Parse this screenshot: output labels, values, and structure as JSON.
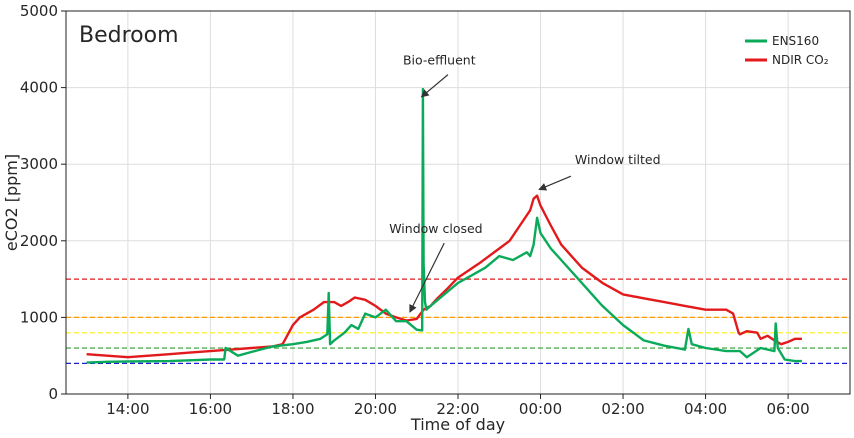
{
  "chart_data": {
    "type": "line",
    "title": "Bedroom",
    "xlabel": "Time of day",
    "ylabel": "eCO2 [ppm]",
    "ylim": [
      0,
      5000
    ],
    "xlim": [
      "12:30",
      "07:30"
    ],
    "xticks": [
      "14:00",
      "16:00",
      "18:00",
      "20:00",
      "22:00",
      "00:00",
      "02:00",
      "04:00",
      "06:00"
    ],
    "yticks": [
      0,
      1000,
      2000,
      3000,
      4000,
      5000
    ],
    "grid": true,
    "legend_position": "top-right",
    "threshold_lines": [
      {
        "value": 1500,
        "color": "#e31a1c",
        "style": "dashed"
      },
      {
        "value": 1000,
        "color": "#ff9900",
        "style": "dashed"
      },
      {
        "value": 800,
        "color": "#ffee33",
        "style": "dashed"
      },
      {
        "value": 600,
        "color": "#2ca02c",
        "style": "dashed"
      },
      {
        "value": 400,
        "color": "#1f1fcc",
        "style": "dashed"
      }
    ],
    "series": [
      {
        "name": "ENS160",
        "color": "#0aaa5a",
        "x": [
          "13:00",
          "13:30",
          "14:00",
          "15:00",
          "15:30",
          "16:00",
          "16:20",
          "16:22",
          "16:40",
          "17:00",
          "17:30",
          "18:00",
          "18:20",
          "18:40",
          "18:50",
          "18:52",
          "18:54",
          "19:00",
          "19:15",
          "19:25",
          "19:35",
          "19:45",
          "20:00",
          "20:15",
          "20:30",
          "20:45",
          "21:00",
          "21:08",
          "21:09",
          "21:10",
          "21:12",
          "21:14",
          "21:20",
          "21:40",
          "22:00",
          "22:20",
          "22:40",
          "23:00",
          "23:20",
          "23:40",
          "23:45",
          "23:50",
          "23:55",
          "00:00",
          "00:15",
          "00:30",
          "00:45",
          "01:00",
          "01:30",
          "02:00",
          "02:30",
          "03:00",
          "03:30",
          "03:35",
          "03:40",
          "04:00",
          "04:30",
          "04:50",
          "05:00",
          "05:20",
          "05:40",
          "05:42",
          "05:45",
          "05:55",
          "06:10",
          "06:20"
        ],
        "y": [
          410,
          420,
          425,
          430,
          440,
          450,
          450,
          600,
          500,
          550,
          620,
          650,
          680,
          720,
          780,
          1320,
          650,
          700,
          800,
          900,
          850,
          1050,
          1000,
          1100,
          950,
          950,
          840,
          830,
          3980,
          1700,
          1200,
          1100,
          1150,
          1300,
          1450,
          1550,
          1650,
          1800,
          1750,
          1850,
          1800,
          1950,
          2300,
          2100,
          1900,
          1750,
          1600,
          1450,
          1150,
          900,
          700,
          630,
          580,
          850,
          650,
          600,
          560,
          560,
          480,
          600,
          560,
          920,
          600,
          450,
          430,
          430
        ]
      },
      {
        "name": "NDIR CO₂",
        "color": "#e31a1c",
        "x": [
          "13:00",
          "13:30",
          "14:00",
          "14:30",
          "15:00",
          "15:30",
          "16:00",
          "16:30",
          "17:00",
          "17:30",
          "17:45",
          "18:00",
          "18:10",
          "18:30",
          "18:45",
          "19:00",
          "19:10",
          "19:20",
          "19:30",
          "19:45",
          "20:00",
          "20:15",
          "20:30",
          "20:45",
          "21:00",
          "21:10",
          "21:20",
          "21:30",
          "21:45",
          "22:00",
          "22:30",
          "23:00",
          "23:15",
          "23:30",
          "23:45",
          "23:50",
          "23:55",
          "00:00",
          "00:15",
          "00:30",
          "01:00",
          "01:30",
          "02:00",
          "02:30",
          "03:00",
          "03:30",
          "04:00",
          "04:15",
          "04:30",
          "04:40",
          "04:48",
          "04:50",
          "05:00",
          "05:15",
          "05:20",
          "05:30",
          "05:40",
          "05:50",
          "06:00",
          "06:10",
          "06:20"
        ],
        "y": [
          520,
          500,
          480,
          500,
          520,
          540,
          560,
          580,
          600,
          620,
          650,
          900,
          1000,
          1100,
          1200,
          1200,
          1150,
          1200,
          1260,
          1230,
          1150,
          1050,
          1000,
          960,
          980,
          1100,
          1150,
          1250,
          1380,
          1520,
          1700,
          1900,
          2000,
          2200,
          2400,
          2550,
          2590,
          2460,
          2200,
          1950,
          1650,
          1450,
          1300,
          1250,
          1200,
          1150,
          1100,
          1100,
          1100,
          1050,
          800,
          780,
          820,
          800,
          720,
          760,
          700,
          650,
          680,
          720,
          720
        ]
      }
    ],
    "annotations": [
      {
        "text": "Bio-effluent",
        "text_at": [
          "20:40",
          4300
        ],
        "arrow_to": [
          "21:07",
          3880
        ]
      },
      {
        "text": "Window tilted",
        "text_at": [
          "00:50",
          3000
        ],
        "arrow_to": [
          "23:58",
          2670
        ]
      },
      {
        "text": "Window closed",
        "text_at": [
          "20:20",
          2100
        ],
        "arrow_to": [
          "20:50",
          1070
        ]
      }
    ]
  }
}
